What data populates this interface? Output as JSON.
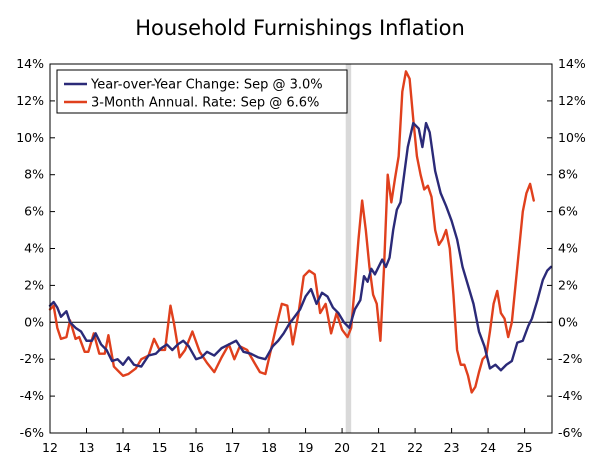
{
  "chart_data": {
    "type": "line",
    "title": "Household Furnishings Inflation",
    "x_ticks": [
      "12",
      "13",
      "14",
      "15",
      "16",
      "17",
      "18",
      "19",
      "20",
      "21",
      "22",
      "23",
      "24",
      "25"
    ],
    "x_start": 12.0,
    "x_end": 25.75,
    "ylim": [
      -6,
      14
    ],
    "y_ticks": [
      "-6%",
      "-4%",
      "-2%",
      "0%",
      "2%",
      "4%",
      "6%",
      "8%",
      "10%",
      "12%",
      "14%"
    ],
    "recession_shading": [
      20.1,
      20.25
    ],
    "legend_position": "top-left",
    "series": [
      {
        "name": "Year-over-Year Change: Sep @ 3.0%",
        "color": "#2b2a78",
        "points": [
          [
            12.0,
            0.9
          ],
          [
            12.1,
            1.1
          ],
          [
            12.2,
            0.8
          ],
          [
            12.3,
            0.3
          ],
          [
            12.45,
            0.6
          ],
          [
            12.55,
            0.0
          ],
          [
            12.7,
            -0.3
          ],
          [
            12.85,
            -0.5
          ],
          [
            13.0,
            -1.0
          ],
          [
            13.15,
            -1.0
          ],
          [
            13.25,
            -0.6
          ],
          [
            13.4,
            -1.2
          ],
          [
            13.55,
            -1.5
          ],
          [
            13.7,
            -2.1
          ],
          [
            13.85,
            -2.0
          ],
          [
            14.0,
            -2.3
          ],
          [
            14.15,
            -1.9
          ],
          [
            14.3,
            -2.3
          ],
          [
            14.5,
            -2.4
          ],
          [
            14.7,
            -1.8
          ],
          [
            14.9,
            -1.7
          ],
          [
            15.05,
            -1.4
          ],
          [
            15.2,
            -1.2
          ],
          [
            15.35,
            -1.5
          ],
          [
            15.5,
            -1.2
          ],
          [
            15.65,
            -1.0
          ],
          [
            15.8,
            -1.3
          ],
          [
            16.0,
            -2.0
          ],
          [
            16.15,
            -1.9
          ],
          [
            16.3,
            -1.6
          ],
          [
            16.5,
            -1.8
          ],
          [
            16.7,
            -1.4
          ],
          [
            16.9,
            -1.2
          ],
          [
            17.1,
            -1.0
          ],
          [
            17.3,
            -1.6
          ],
          [
            17.5,
            -1.7
          ],
          [
            17.7,
            -1.9
          ],
          [
            17.9,
            -2.0
          ],
          [
            18.1,
            -1.3
          ],
          [
            18.25,
            -1.0
          ],
          [
            18.4,
            -0.6
          ],
          [
            18.55,
            -0.1
          ],
          [
            18.7,
            0.3
          ],
          [
            18.85,
            0.7
          ],
          [
            19.0,
            1.4
          ],
          [
            19.15,
            1.8
          ],
          [
            19.3,
            1.0
          ],
          [
            19.45,
            1.6
          ],
          [
            19.6,
            1.4
          ],
          [
            19.75,
            0.8
          ],
          [
            19.9,
            0.5
          ],
          [
            20.05,
            0.0
          ],
          [
            20.2,
            -0.3
          ],
          [
            20.35,
            0.7
          ],
          [
            20.5,
            1.2
          ],
          [
            20.6,
            2.5
          ],
          [
            20.7,
            2.2
          ],
          [
            20.8,
            2.9
          ],
          [
            20.9,
            2.6
          ],
          [
            21.0,
            3.0
          ],
          [
            21.1,
            3.4
          ],
          [
            21.2,
            3.0
          ],
          [
            21.3,
            3.5
          ],
          [
            21.4,
            5.0
          ],
          [
            21.5,
            6.1
          ],
          [
            21.6,
            6.5
          ],
          [
            21.7,
            8.0
          ],
          [
            21.8,
            9.5
          ],
          [
            21.95,
            10.8
          ],
          [
            22.1,
            10.5
          ],
          [
            22.2,
            9.5
          ],
          [
            22.3,
            10.8
          ],
          [
            22.4,
            10.3
          ],
          [
            22.55,
            8.2
          ],
          [
            22.7,
            7.0
          ],
          [
            22.85,
            6.3
          ],
          [
            23.0,
            5.5
          ],
          [
            23.15,
            4.5
          ],
          [
            23.3,
            3.0
          ],
          [
            23.45,
            2.0
          ],
          [
            23.6,
            1.0
          ],
          [
            23.75,
            -0.5
          ],
          [
            23.9,
            -1.3
          ],
          [
            24.05,
            -2.5
          ],
          [
            24.2,
            -2.3
          ],
          [
            24.35,
            -2.6
          ],
          [
            24.5,
            -2.3
          ],
          [
            24.65,
            -2.1
          ],
          [
            24.8,
            -1.1
          ],
          [
            24.95,
            -1.0
          ],
          [
            25.1,
            -0.2
          ],
          [
            25.2,
            0.2
          ],
          [
            25.35,
            1.2
          ],
          [
            25.5,
            2.3
          ],
          [
            25.62,
            2.8
          ],
          [
            25.72,
            3.0
          ]
        ]
      },
      {
        "name": "3-Month Annual. Rate: Sep @ 6.6%",
        "color": "#e0401d",
        "points": [
          [
            12.0,
            0.7
          ],
          [
            12.1,
            0.9
          ],
          [
            12.2,
            -0.3
          ],
          [
            12.3,
            -0.9
          ],
          [
            12.45,
            -0.8
          ],
          [
            12.55,
            0.1
          ],
          [
            12.7,
            -0.9
          ],
          [
            12.8,
            -0.8
          ],
          [
            12.95,
            -1.6
          ],
          [
            13.05,
            -1.6
          ],
          [
            13.2,
            -0.6
          ],
          [
            13.35,
            -1.7
          ],
          [
            13.5,
            -1.7
          ],
          [
            13.6,
            -0.7
          ],
          [
            13.75,
            -2.4
          ],
          [
            13.9,
            -2.7
          ],
          [
            14.0,
            -2.9
          ],
          [
            14.15,
            -2.8
          ],
          [
            14.35,
            -2.5
          ],
          [
            14.5,
            -2.0
          ],
          [
            14.7,
            -1.8
          ],
          [
            14.85,
            -0.9
          ],
          [
            15.0,
            -1.5
          ],
          [
            15.15,
            -1.5
          ],
          [
            15.3,
            0.9
          ],
          [
            15.4,
            -0.1
          ],
          [
            15.55,
            -1.9
          ],
          [
            15.7,
            -1.5
          ],
          [
            15.9,
            -0.5
          ],
          [
            16.1,
            -1.6
          ],
          [
            16.3,
            -2.2
          ],
          [
            16.5,
            -2.7
          ],
          [
            16.7,
            -1.9
          ],
          [
            16.9,
            -1.2
          ],
          [
            17.05,
            -2.0
          ],
          [
            17.2,
            -1.3
          ],
          [
            17.4,
            -1.5
          ],
          [
            17.6,
            -2.2
          ],
          [
            17.75,
            -2.7
          ],
          [
            17.9,
            -2.8
          ],
          [
            18.05,
            -1.5
          ],
          [
            18.2,
            -0.2
          ],
          [
            18.35,
            1.0
          ],
          [
            18.5,
            0.9
          ],
          [
            18.65,
            -1.2
          ],
          [
            18.8,
            0.4
          ],
          [
            18.95,
            2.5
          ],
          [
            19.1,
            2.8
          ],
          [
            19.25,
            2.6
          ],
          [
            19.4,
            0.5
          ],
          [
            19.55,
            1.0
          ],
          [
            19.7,
            -0.6
          ],
          [
            19.85,
            0.5
          ],
          [
            20.0,
            -0.4
          ],
          [
            20.15,
            -0.8
          ],
          [
            20.25,
            -0.3
          ],
          [
            20.35,
            2.0
          ],
          [
            20.45,
            4.5
          ],
          [
            20.55,
            6.6
          ],
          [
            20.65,
            5.0
          ],
          [
            20.75,
            3.0
          ],
          [
            20.85,
            1.5
          ],
          [
            20.95,
            1.0
          ],
          [
            21.05,
            -1.0
          ],
          [
            21.15,
            3.0
          ],
          [
            21.25,
            8.0
          ],
          [
            21.35,
            6.5
          ],
          [
            21.45,
            7.8
          ],
          [
            21.55,
            9.0
          ],
          [
            21.65,
            12.5
          ],
          [
            21.75,
            13.6
          ],
          [
            21.85,
            13.2
          ],
          [
            21.95,
            11.0
          ],
          [
            22.05,
            9.0
          ],
          [
            22.15,
            8.0
          ],
          [
            22.25,
            7.2
          ],
          [
            22.35,
            7.4
          ],
          [
            22.45,
            6.8
          ],
          [
            22.55,
            5.0
          ],
          [
            22.65,
            4.2
          ],
          [
            22.75,
            4.5
          ],
          [
            22.85,
            5.0
          ],
          [
            22.95,
            4.0
          ],
          [
            23.05,
            1.5
          ],
          [
            23.15,
            -1.5
          ],
          [
            23.25,
            -2.3
          ],
          [
            23.35,
            -2.3
          ],
          [
            23.45,
            -2.9
          ],
          [
            23.55,
            -3.8
          ],
          [
            23.65,
            -3.5
          ],
          [
            23.75,
            -2.7
          ],
          [
            23.85,
            -2.0
          ],
          [
            23.95,
            -1.8
          ],
          [
            24.05,
            -0.5
          ],
          [
            24.15,
            1.0
          ],
          [
            24.25,
            1.7
          ],
          [
            24.35,
            0.5
          ],
          [
            24.45,
            0.2
          ],
          [
            24.55,
            -0.8
          ],
          [
            24.65,
            0.0
          ],
          [
            24.75,
            2.0
          ],
          [
            24.85,
            4.0
          ],
          [
            24.95,
            6.0
          ],
          [
            25.05,
            7.0
          ],
          [
            25.15,
            7.5
          ],
          [
            25.25,
            6.6
          ]
        ]
      }
    ]
  }
}
